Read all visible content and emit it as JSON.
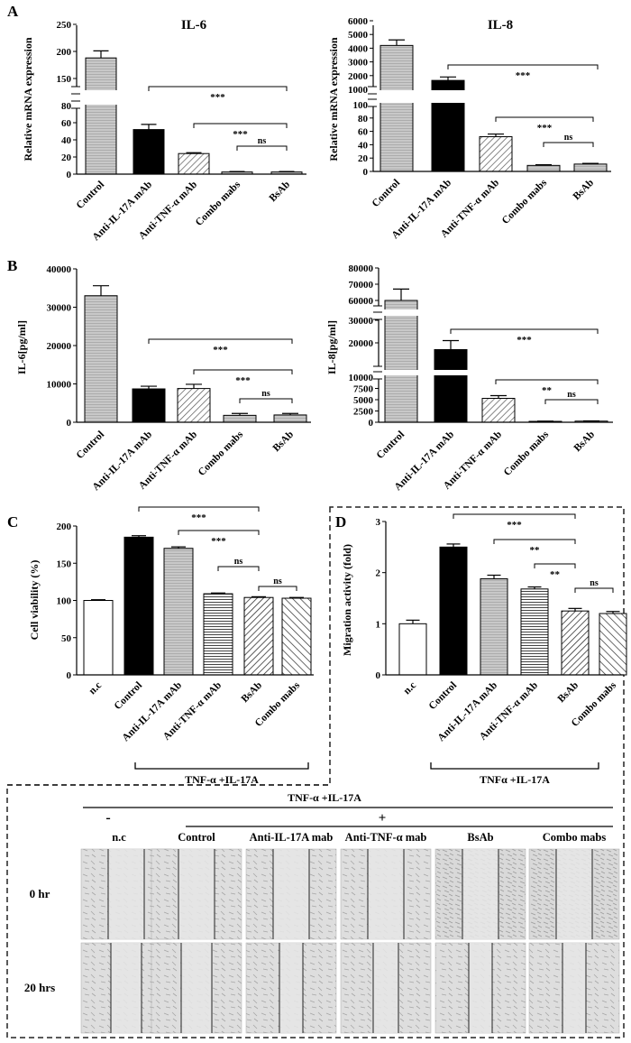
{
  "panels": {
    "A": {
      "letter": "A",
      "charts": [
        {
          "title": "IL-6",
          "ylabel": "Relative mRNA expression",
          "categories": [
            "Control",
            "Anti-IL-17A mAb",
            "Anti-TNF-α mAb",
            "Combo mabs",
            "BsAb"
          ],
          "values": [
            188,
            52,
            24,
            2.5,
            2.5
          ],
          "errors": [
            13,
            6,
            1,
            0.5,
            0.5
          ],
          "fills": [
            "gray",
            "black",
            "hatch",
            "gray",
            "gray"
          ],
          "upper_ticks": [
            "150",
            "200",
            "250"
          ],
          "lower_ticks": [
            "0",
            "20",
            "40",
            "60",
            "80"
          ],
          "sig": [
            "***",
            "***",
            "ns"
          ]
        },
        {
          "title": "IL-8",
          "ylabel": "Relative mRNA expression",
          "categories": [
            "Control",
            "Anti-IL-17A mAb",
            "Anti-TNF-α mAb",
            "Combo mabs",
            "BsAb"
          ],
          "values": [
            4200,
            1650,
            52,
            9,
            11
          ],
          "errors": [
            400,
            250,
            4,
            1,
            1
          ],
          "fills": [
            "gray",
            "black",
            "hatch",
            "gray",
            "gray"
          ],
          "upper_ticks": [
            "1000",
            "2000",
            "3000",
            "4000",
            "5000",
            "6000"
          ],
          "lower_ticks": [
            "0",
            "20",
            "40",
            "60",
            "80",
            "100"
          ],
          "sig": [
            "***",
            "***",
            "ns"
          ]
        }
      ]
    },
    "B": {
      "letter": "B",
      "charts": [
        {
          "ylabel": "IL-6[pg/ml]",
          "categories": [
            "Control",
            "Anti-IL-17A mAb",
            "Anti-TNF-α mAb",
            "Combo mabs",
            "BsAb"
          ],
          "values": [
            33000,
            8700,
            8800,
            1800,
            1900
          ],
          "errors": [
            2600,
            700,
            1100,
            500,
            400
          ],
          "fills": [
            "gray",
            "black",
            "hatch",
            "gray",
            "gray"
          ],
          "ticks": [
            "0",
            "10000",
            "20000",
            "30000",
            "40000"
          ],
          "sig": [
            "***",
            "***",
            "ns"
          ]
        },
        {
          "ylabel": "IL-8[pg/ml]",
          "categories": [
            "Control",
            "Anti-IL-17A mAb",
            "Anti-TNF-α mAb",
            "Combo mabs",
            "BsAb"
          ],
          "values": [
            60000,
            17000,
            5300,
            200,
            250
          ],
          "errors": [
            7000,
            4000,
            600,
            50,
            50
          ],
          "fills": [
            "gray",
            "black",
            "hatch",
            "gray",
            "gray"
          ],
          "top_ticks": [
            "60000",
            "70000",
            "80000"
          ],
          "mid_ticks": [
            "10000",
            "20000",
            "30000"
          ],
          "low_ticks": [
            "0",
            "2500",
            "5000",
            "7500",
            "10000"
          ],
          "sig": [
            "***",
            "**",
            "ns"
          ]
        }
      ]
    },
    "C": {
      "letter": "C",
      "ylabel": "Cell viability (%)",
      "categories": [
        "n.c",
        "Control",
        "Anti-IL-17A mAb",
        "Anti-TNF-α mAb",
        "BsAb",
        "Combo mabs"
      ],
      "values": [
        100,
        185,
        170,
        109,
        104,
        103
      ],
      "errors": [
        1,
        2,
        2,
        1,
        1,
        1
      ],
      "fills": [
        "white",
        "black",
        "gray",
        "hlines",
        "diag",
        "diag2"
      ],
      "ticks": [
        "0",
        "50",
        "100",
        "150",
        "200"
      ],
      "sig": [
        "***",
        "***",
        "ns",
        "ns"
      ],
      "treatment": "TNF-α +IL-17A"
    },
    "D": {
      "letter": "D",
      "ylabel": "Migration activity (fold)",
      "categories": [
        "n.c",
        "Control",
        "Anti-IL-17A mAb",
        "Anti-TNF-α mAb",
        "BsAb",
        "Combo mabs"
      ],
      "values": [
        1.0,
        2.5,
        1.88,
        1.68,
        1.25,
        1.2
      ],
      "errors": [
        0.07,
        0.06,
        0.07,
        0.04,
        0.05,
        0.04
      ],
      "fills": [
        "white",
        "black",
        "gray",
        "hlines",
        "diag",
        "diag2"
      ],
      "ticks": [
        "0",
        "1",
        "2",
        "3"
      ],
      "sig": [
        "***",
        "**",
        "**",
        "ns"
      ],
      "treatment": "TNFα +IL-17A"
    },
    "E": {
      "treatment": "TNF-α +IL-17A",
      "minus": "-",
      "plus": "+",
      "columns": [
        "n.c",
        "Control",
        "Anti-IL-17A  mab",
        "Anti-TNF-α  mab",
        "BsAb",
        "Combo  mabs"
      ],
      "rows": [
        "0 hr",
        "20 hrs"
      ]
    }
  },
  "chart_data": [
    {
      "type": "bar",
      "title": "IL-6",
      "ylabel": "Relative mRNA expression",
      "categories": [
        "Control",
        "Anti-IL-17A mAb",
        "Anti-TNF-α mAb",
        "Combo mabs",
        "BsAb"
      ],
      "values": [
        188,
        52,
        24,
        2.5,
        2.5
      ],
      "ylim": [
        0,
        250
      ]
    },
    {
      "type": "bar",
      "title": "IL-8",
      "ylabel": "Relative mRNA expression",
      "categories": [
        "Control",
        "Anti-IL-17A mAb",
        "Anti-TNF-α mAb",
        "Combo mabs",
        "BsAb"
      ],
      "values": [
        4200,
        1650,
        52,
        9,
        11
      ],
      "ylim": [
        0,
        6000
      ]
    },
    {
      "type": "bar",
      "title": "",
      "ylabel": "IL-6[pg/ml]",
      "categories": [
        "Control",
        "Anti-IL-17A mAb",
        "Anti-TNF-α mAb",
        "Combo mabs",
        "BsAb"
      ],
      "values": [
        33000,
        8700,
        8800,
        1800,
        1900
      ],
      "ylim": [
        0,
        40000
      ]
    },
    {
      "type": "bar",
      "title": "",
      "ylabel": "IL-8[pg/ml]",
      "categories": [
        "Control",
        "Anti-IL-17A mAb",
        "Anti-TNF-α mAb",
        "Combo mabs",
        "BsAb"
      ],
      "values": [
        60000,
        17000,
        5300,
        200,
        250
      ],
      "ylim": [
        0,
        80000
      ]
    },
    {
      "type": "bar",
      "title": "",
      "ylabel": "Cell viability (%)",
      "categories": [
        "n.c",
        "Control",
        "Anti-IL-17A mAb",
        "Anti-TNF-α mAb",
        "BsAb",
        "Combo mabs"
      ],
      "values": [
        100,
        185,
        170,
        109,
        104,
        103
      ],
      "ylim": [
        0,
        200
      ]
    },
    {
      "type": "bar",
      "title": "",
      "ylabel": "Migration activity (fold)",
      "categories": [
        "n.c",
        "Control",
        "Anti-IL-17A mAb",
        "Anti-TNF-α mAb",
        "BsAb",
        "Combo mabs"
      ],
      "values": [
        1.0,
        2.5,
        1.88,
        1.68,
        1.25,
        1.2
      ],
      "ylim": [
        0,
        3
      ]
    }
  ]
}
